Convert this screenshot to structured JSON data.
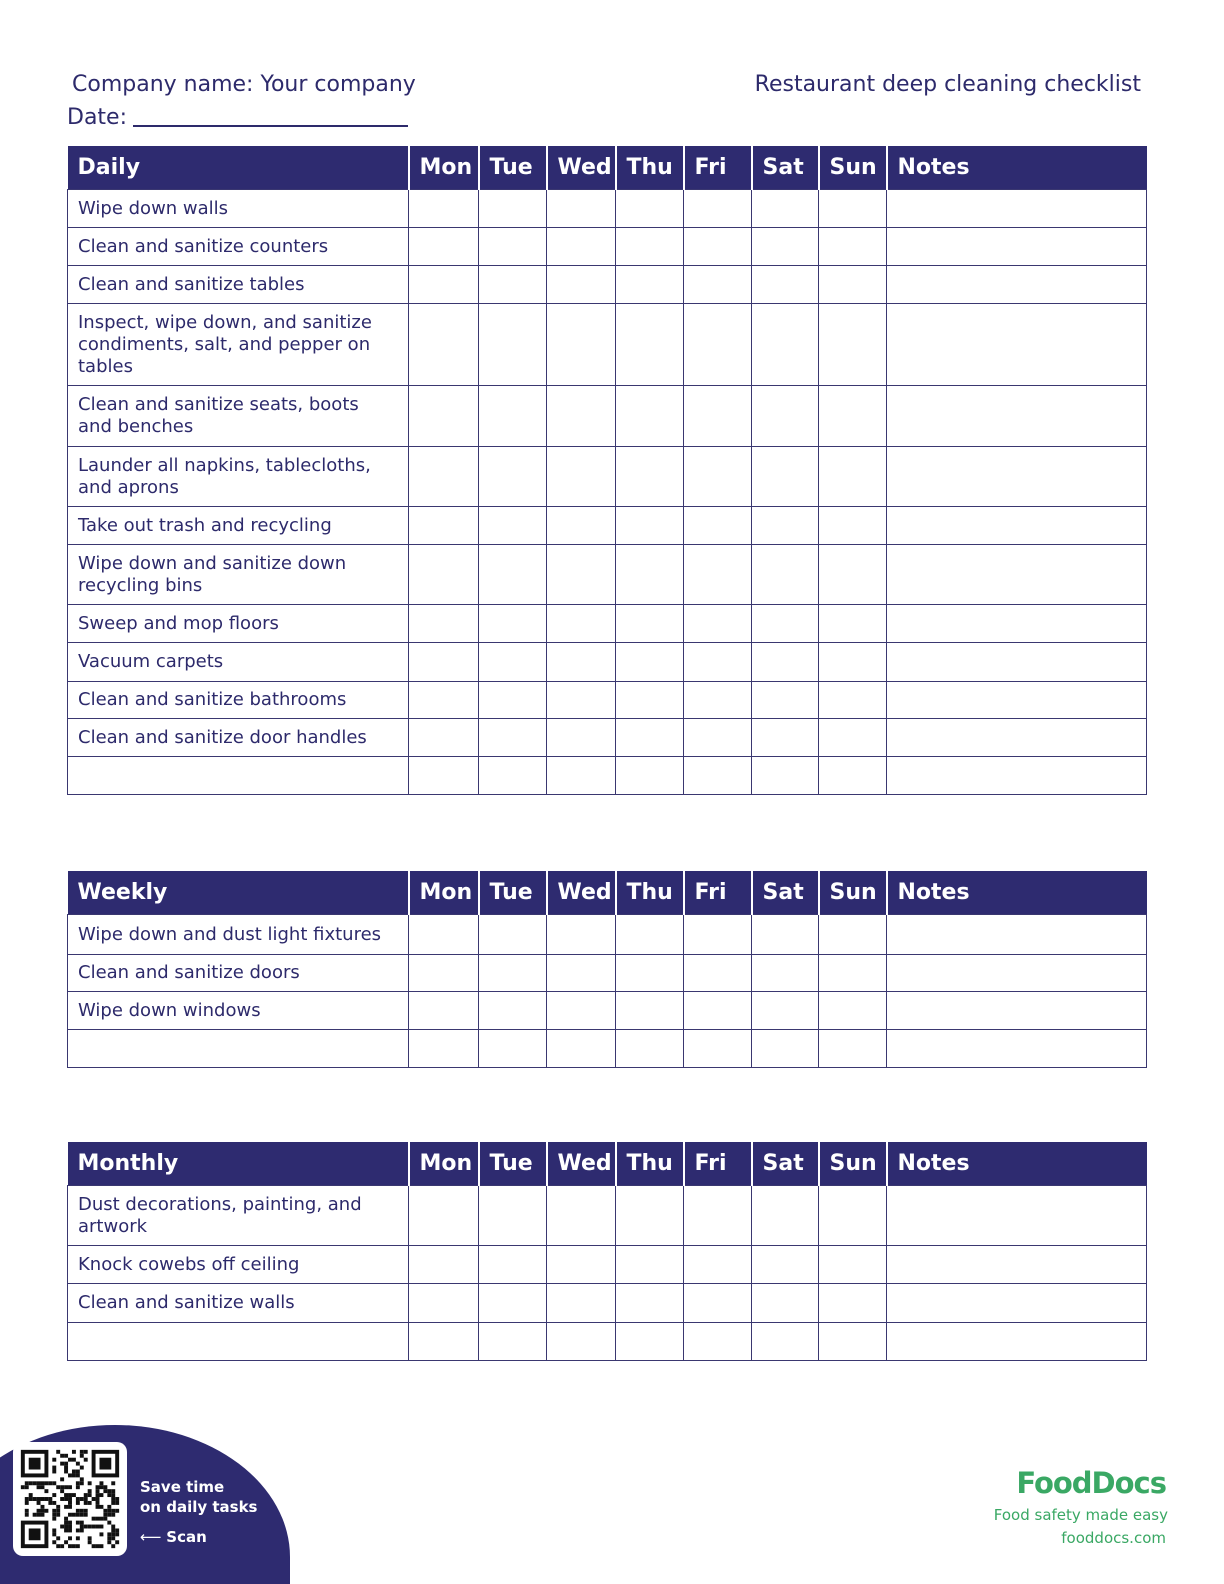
{
  "header": {
    "company": "Company name: Your company",
    "date_label": "Date:",
    "title": "Restaurant deep cleaning checklist"
  },
  "days": [
    "Mon",
    "Tue",
    "Wed",
    "Thu",
    "Fri",
    "Sat",
    "Sun"
  ],
  "notes_label": "Notes",
  "sections": [
    {
      "title": "Daily",
      "tasks": [
        "Wipe down walls",
        "Clean and sanitize counters",
        "Clean and sanitize tables",
        "Inspect, wipe down, and sanitize condiments, salt, and pepper on tables",
        "Clean and sanitize seats, boots and benches",
        "Launder all napkins, tablecloths, and aprons",
        "Take out trash and recycling",
        "Wipe down and sanitize down recycling bins",
        "Sweep and mop floors",
        "Vacuum carpets",
        "Clean and sanitize bathrooms",
        "Clean and sanitize door handles",
        ""
      ]
    },
    {
      "title": "Weekly",
      "tasks": [
        "Wipe down and dust light fixtures",
        "Clean and sanitize doors",
        "Wipe down windows",
        ""
      ]
    },
    {
      "title": "Monthly",
      "tasks": [
        "Dust decorations, painting, and artwork",
        "Knock cowebs off ceiling",
        "Clean and sanitize walls",
        ""
      ]
    }
  ],
  "promo": {
    "line1": "Save time",
    "line2": "on daily tasks",
    "scan": "Scan",
    "arrow-icon": "left-arrow"
  },
  "brand": {
    "logo": "FoodDocs",
    "tagline": "Food safety made easy",
    "url": "fooddocs.com",
    "color": "#3aa864"
  },
  "colors": {
    "primary": "#2e2b70"
  }
}
